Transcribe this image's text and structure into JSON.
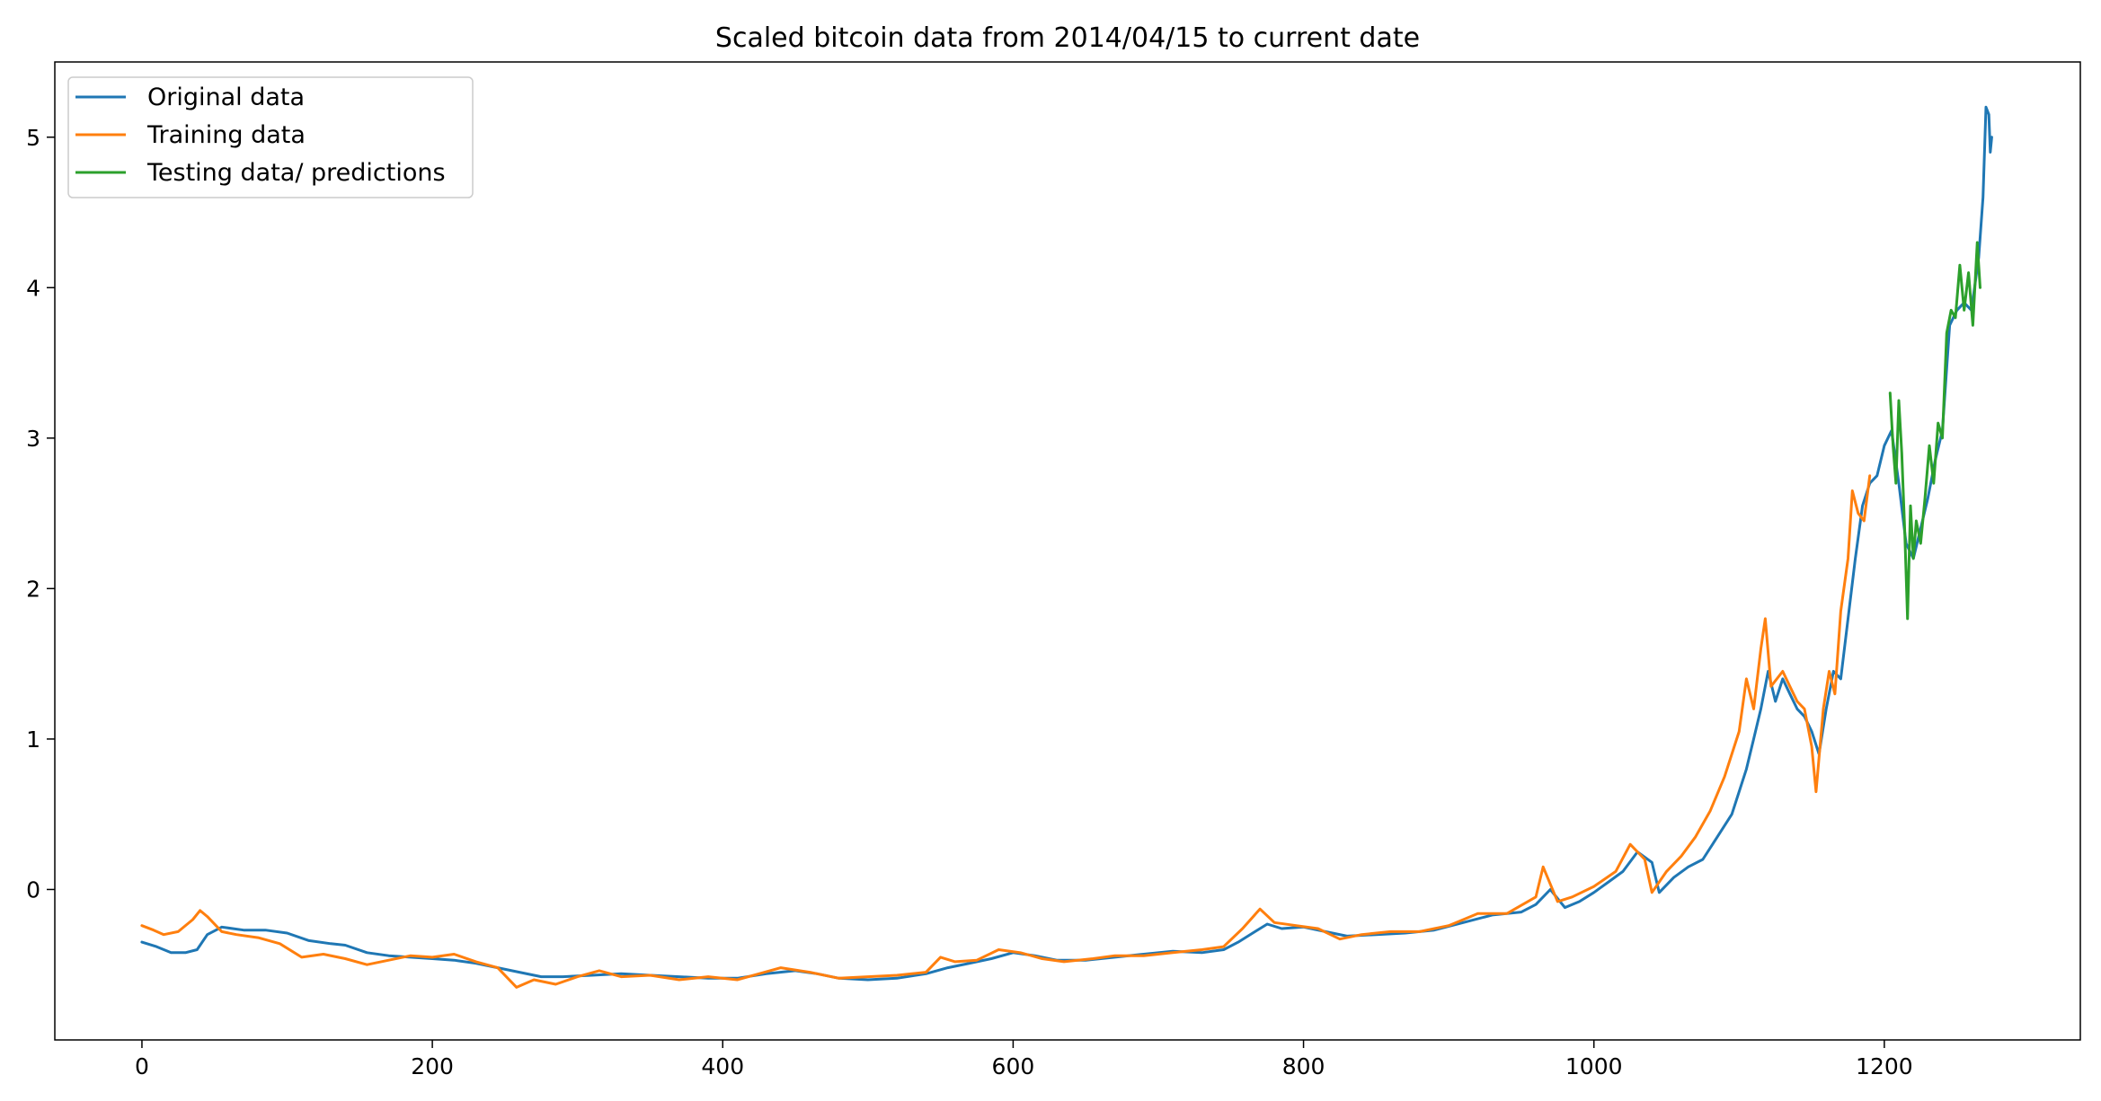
{
  "chart_data": {
    "type": "line",
    "title": "Scaled bitcoin data from 2014/04/15 to current date",
    "xlabel": "",
    "ylabel": "",
    "xlim": [
      -60,
      1335
    ],
    "ylim": [
      -1.0,
      5.5
    ],
    "x_ticks": [
      0,
      200,
      400,
      600,
      800,
      1000,
      1200
    ],
    "y_ticks": [
      0,
      1,
      2,
      3,
      4,
      5
    ],
    "grid": false,
    "legend_position": "top-left",
    "series": [
      {
        "name": "Original data",
        "color": "#1f77b4",
        "points": [
          [
            0,
            -0.35
          ],
          [
            10,
            -0.38
          ],
          [
            20,
            -0.42
          ],
          [
            30,
            -0.42
          ],
          [
            38,
            -0.4
          ],
          [
            45,
            -0.3
          ],
          [
            55,
            -0.25
          ],
          [
            70,
            -0.27
          ],
          [
            85,
            -0.27
          ],
          [
            100,
            -0.29
          ],
          [
            115,
            -0.34
          ],
          [
            130,
            -0.36
          ],
          [
            140,
            -0.37
          ],
          [
            155,
            -0.42
          ],
          [
            170,
            -0.44
          ],
          [
            185,
            -0.45
          ],
          [
            200,
            -0.46
          ],
          [
            215,
            -0.47
          ],
          [
            230,
            -0.49
          ],
          [
            245,
            -0.52
          ],
          [
            260,
            -0.55
          ],
          [
            275,
            -0.58
          ],
          [
            290,
            -0.58
          ],
          [
            310,
            -0.57
          ],
          [
            330,
            -0.56
          ],
          [
            350,
            -0.57
          ],
          [
            370,
            -0.58
          ],
          [
            390,
            -0.59
          ],
          [
            410,
            -0.59
          ],
          [
            430,
            -0.56
          ],
          [
            450,
            -0.54
          ],
          [
            465,
            -0.56
          ],
          [
            480,
            -0.59
          ],
          [
            500,
            -0.6
          ],
          [
            520,
            -0.59
          ],
          [
            540,
            -0.56
          ],
          [
            555,
            -0.52
          ],
          [
            570,
            -0.49
          ],
          [
            585,
            -0.46
          ],
          [
            600,
            -0.42
          ],
          [
            615,
            -0.44
          ],
          [
            630,
            -0.47
          ],
          [
            650,
            -0.47
          ],
          [
            670,
            -0.45
          ],
          [
            690,
            -0.43
          ],
          [
            710,
            -0.41
          ],
          [
            730,
            -0.42
          ],
          [
            745,
            -0.4
          ],
          [
            755,
            -0.35
          ],
          [
            765,
            -0.29
          ],
          [
            775,
            -0.23
          ],
          [
            785,
            -0.26
          ],
          [
            800,
            -0.25
          ],
          [
            815,
            -0.28
          ],
          [
            830,
            -0.31
          ],
          [
            850,
            -0.3
          ],
          [
            870,
            -0.29
          ],
          [
            890,
            -0.27
          ],
          [
            910,
            -0.22
          ],
          [
            930,
            -0.17
          ],
          [
            950,
            -0.15
          ],
          [
            960,
            -0.1
          ],
          [
            970,
            0.0
          ],
          [
            980,
            -0.12
          ],
          [
            990,
            -0.08
          ],
          [
            1000,
            -0.02
          ],
          [
            1010,
            0.05
          ],
          [
            1020,
            0.12
          ],
          [
            1030,
            0.25
          ],
          [
            1040,
            0.18
          ],
          [
            1045,
            -0.02
          ],
          [
            1055,
            0.08
          ],
          [
            1065,
            0.15
          ],
          [
            1075,
            0.2
          ],
          [
            1085,
            0.35
          ],
          [
            1095,
            0.5
          ],
          [
            1105,
            0.8
          ],
          [
            1110,
            1.0
          ],
          [
            1115,
            1.2
          ],
          [
            1120,
            1.45
          ],
          [
            1125,
            1.25
          ],
          [
            1130,
            1.4
          ],
          [
            1135,
            1.3
          ],
          [
            1140,
            1.2
          ],
          [
            1145,
            1.15
          ],
          [
            1150,
            1.05
          ],
          [
            1155,
            0.9
          ],
          [
            1160,
            1.2
          ],
          [
            1165,
            1.45
          ],
          [
            1170,
            1.4
          ],
          [
            1175,
            1.8
          ],
          [
            1180,
            2.2
          ],
          [
            1185,
            2.55
          ],
          [
            1190,
            2.7
          ],
          [
            1195,
            2.75
          ],
          [
            1200,
            2.95
          ],
          [
            1205,
            3.05
          ],
          [
            1210,
            2.7
          ],
          [
            1215,
            2.3
          ],
          [
            1220,
            2.2
          ],
          [
            1225,
            2.4
          ],
          [
            1230,
            2.6
          ],
          [
            1235,
            2.85
          ],
          [
            1240,
            3.05
          ],
          [
            1245,
            3.75
          ],
          [
            1250,
            3.85
          ],
          [
            1255,
            3.9
          ],
          [
            1260,
            3.85
          ],
          [
            1265,
            4.2
          ],
          [
            1268,
            4.6
          ],
          [
            1270,
            5.2
          ],
          [
            1272,
            5.15
          ],
          [
            1273,
            4.9
          ],
          [
            1274,
            5.0
          ]
        ]
      },
      {
        "name": "Training data",
        "color": "#ff7f0e",
        "points": [
          [
            0,
            -0.24
          ],
          [
            8,
            -0.27
          ],
          [
            15,
            -0.3
          ],
          [
            25,
            -0.28
          ],
          [
            35,
            -0.2
          ],
          [
            40,
            -0.14
          ],
          [
            45,
            -0.18
          ],
          [
            55,
            -0.28
          ],
          [
            65,
            -0.3
          ],
          [
            80,
            -0.32
          ],
          [
            95,
            -0.36
          ],
          [
            110,
            -0.45
          ],
          [
            125,
            -0.43
          ],
          [
            140,
            -0.46
          ],
          [
            155,
            -0.5
          ],
          [
            170,
            -0.47
          ],
          [
            185,
            -0.44
          ],
          [
            200,
            -0.45
          ],
          [
            215,
            -0.43
          ],
          [
            230,
            -0.48
          ],
          [
            245,
            -0.52
          ],
          [
            258,
            -0.65
          ],
          [
            270,
            -0.6
          ],
          [
            285,
            -0.63
          ],
          [
            300,
            -0.58
          ],
          [
            315,
            -0.54
          ],
          [
            330,
            -0.58
          ],
          [
            350,
            -0.57
          ],
          [
            370,
            -0.6
          ],
          [
            390,
            -0.58
          ],
          [
            410,
            -0.6
          ],
          [
            425,
            -0.56
          ],
          [
            440,
            -0.52
          ],
          [
            460,
            -0.55
          ],
          [
            480,
            -0.59
          ],
          [
            500,
            -0.58
          ],
          [
            520,
            -0.57
          ],
          [
            540,
            -0.55
          ],
          [
            550,
            -0.45
          ],
          [
            560,
            -0.48
          ],
          [
            575,
            -0.47
          ],
          [
            590,
            -0.4
          ],
          [
            605,
            -0.42
          ],
          [
            620,
            -0.46
          ],
          [
            635,
            -0.48
          ],
          [
            655,
            -0.46
          ],
          [
            670,
            -0.44
          ],
          [
            690,
            -0.44
          ],
          [
            710,
            -0.42
          ],
          [
            730,
            -0.4
          ],
          [
            745,
            -0.38
          ],
          [
            758,
            -0.26
          ],
          [
            770,
            -0.13
          ],
          [
            780,
            -0.22
          ],
          [
            795,
            -0.24
          ],
          [
            810,
            -0.26
          ],
          [
            825,
            -0.33
          ],
          [
            840,
            -0.3
          ],
          [
            860,
            -0.28
          ],
          [
            880,
            -0.28
          ],
          [
            900,
            -0.24
          ],
          [
            920,
            -0.16
          ],
          [
            940,
            -0.16
          ],
          [
            960,
            -0.05
          ],
          [
            965,
            0.15
          ],
          [
            975,
            -0.08
          ],
          [
            985,
            -0.05
          ],
          [
            1000,
            0.02
          ],
          [
            1015,
            0.12
          ],
          [
            1025,
            0.3
          ],
          [
            1035,
            0.2
          ],
          [
            1040,
            -0.02
          ],
          [
            1050,
            0.12
          ],
          [
            1060,
            0.22
          ],
          [
            1070,
            0.35
          ],
          [
            1080,
            0.52
          ],
          [
            1090,
            0.75
          ],
          [
            1100,
            1.05
          ],
          [
            1105,
            1.4
          ],
          [
            1110,
            1.2
          ],
          [
            1115,
            1.6
          ],
          [
            1118,
            1.8
          ],
          [
            1122,
            1.35
          ],
          [
            1130,
            1.45
          ],
          [
            1135,
            1.35
          ],
          [
            1140,
            1.25
          ],
          [
            1145,
            1.2
          ],
          [
            1150,
            0.95
          ],
          [
            1153,
            0.65
          ],
          [
            1158,
            1.2
          ],
          [
            1162,
            1.45
          ],
          [
            1166,
            1.3
          ],
          [
            1170,
            1.85
          ],
          [
            1175,
            2.2
          ],
          [
            1178,
            2.65
          ],
          [
            1182,
            2.5
          ],
          [
            1186,
            2.45
          ],
          [
            1190,
            2.75
          ]
        ]
      },
      {
        "name": "Testing data/ predictions",
        "color": "#2ca02c",
        "points": [
          [
            1204,
            3.3
          ],
          [
            1206,
            2.95
          ],
          [
            1208,
            2.7
          ],
          [
            1210,
            3.25
          ],
          [
            1212,
            2.9
          ],
          [
            1214,
            2.4
          ],
          [
            1216,
            1.8
          ],
          [
            1218,
            2.55
          ],
          [
            1220,
            2.2
          ],
          [
            1222,
            2.45
          ],
          [
            1225,
            2.3
          ],
          [
            1228,
            2.6
          ],
          [
            1231,
            2.95
          ],
          [
            1234,
            2.7
          ],
          [
            1237,
            3.1
          ],
          [
            1240,
            3.0
          ],
          [
            1243,
            3.7
          ],
          [
            1246,
            3.85
          ],
          [
            1249,
            3.8
          ],
          [
            1252,
            4.15
          ],
          [
            1255,
            3.85
          ],
          [
            1258,
            4.1
          ],
          [
            1261,
            3.75
          ],
          [
            1264,
            4.3
          ],
          [
            1266,
            4.0
          ]
        ]
      }
    ]
  }
}
